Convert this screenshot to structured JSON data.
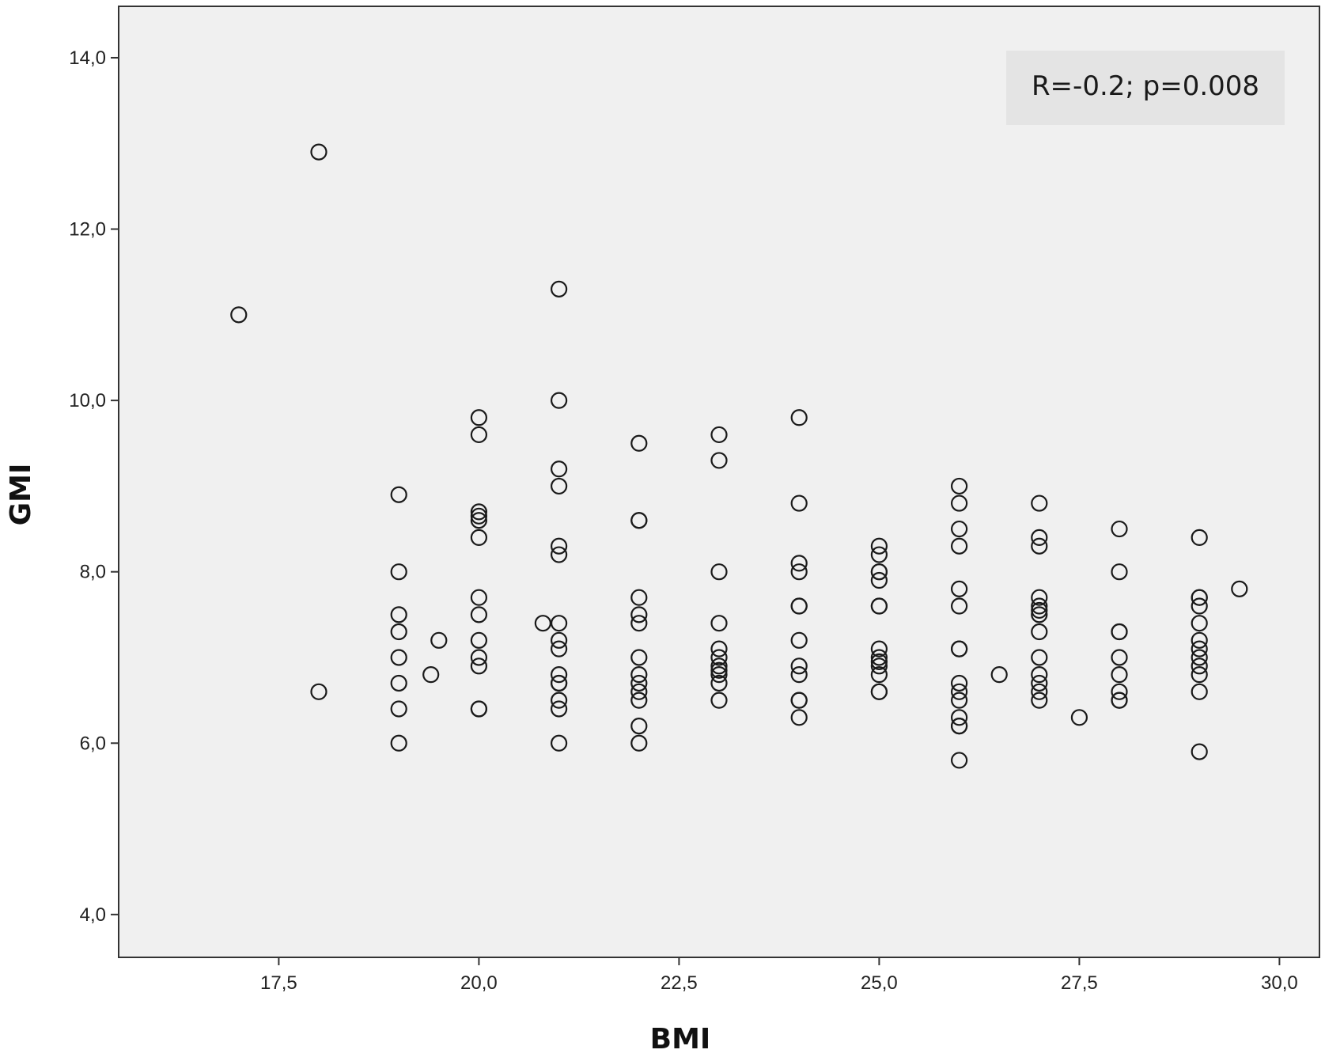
{
  "chart_data": {
    "type": "scatter",
    "xlabel": "BMI",
    "ylabel": "GMI",
    "xlim": [
      15.5,
      30.5
    ],
    "ylim": [
      3.5,
      14.6
    ],
    "x_ticks": [
      17.5,
      20.0,
      22.5,
      25.0,
      27.5,
      30.0
    ],
    "x_tick_labels": [
      "17,5",
      "20,0",
      "22,5",
      "25,0",
      "27,5",
      "30,0"
    ],
    "y_ticks": [
      4.0,
      6.0,
      8.0,
      10.0,
      12.0,
      14.0
    ],
    "y_tick_labels": [
      "4,0",
      "6,0",
      "8,0",
      "10,0",
      "12,0",
      "14,0"
    ],
    "grid": false,
    "annotation": {
      "text": "R=-0.2; p=0.008",
      "placement": "top-right"
    },
    "colors": {
      "plot_background": "#f0f0f0",
      "annotation_background": "#e4e4e4",
      "marker_stroke": "#1a1a1a",
      "axis": "#333333"
    },
    "series": [
      {
        "points": [
          [
            17.0,
            11.0
          ],
          [
            18.0,
            12.9
          ],
          [
            18.0,
            6.6
          ],
          [
            19.0,
            8.9
          ],
          [
            19.0,
            8.0
          ],
          [
            19.0,
            7.5
          ],
          [
            19.0,
            7.3
          ],
          [
            19.0,
            7.0
          ],
          [
            19.0,
            6.7
          ],
          [
            19.0,
            6.4
          ],
          [
            19.0,
            6.0
          ],
          [
            19.4,
            6.8
          ],
          [
            19.5,
            7.2
          ],
          [
            20.0,
            9.8
          ],
          [
            20.0,
            9.6
          ],
          [
            20.0,
            8.7
          ],
          [
            20.0,
            8.65
          ],
          [
            20.0,
            8.6
          ],
          [
            20.0,
            8.4
          ],
          [
            20.0,
            7.7
          ],
          [
            20.0,
            7.5
          ],
          [
            20.0,
            7.2
          ],
          [
            20.0,
            7.0
          ],
          [
            20.0,
            6.9
          ],
          [
            20.0,
            6.4
          ],
          [
            20.0,
            6.4
          ],
          [
            20.8,
            7.4
          ],
          [
            21.0,
            11.3
          ],
          [
            21.0,
            10.0
          ],
          [
            21.0,
            9.2
          ],
          [
            21.0,
            9.0
          ],
          [
            21.0,
            8.3
          ],
          [
            21.0,
            8.2
          ],
          [
            21.0,
            7.4
          ],
          [
            21.0,
            7.2
          ],
          [
            21.0,
            7.1
          ],
          [
            21.0,
            6.8
          ],
          [
            21.0,
            6.7
          ],
          [
            21.0,
            6.7
          ],
          [
            21.0,
            6.5
          ],
          [
            21.0,
            6.4
          ],
          [
            21.0,
            6.0
          ],
          [
            22.0,
            9.5
          ],
          [
            22.0,
            8.6
          ],
          [
            22.0,
            8.6
          ],
          [
            22.0,
            7.7
          ],
          [
            22.0,
            7.5
          ],
          [
            22.0,
            7.4
          ],
          [
            22.0,
            7.0
          ],
          [
            22.0,
            6.8
          ],
          [
            22.0,
            6.7
          ],
          [
            22.0,
            6.6
          ],
          [
            22.0,
            6.5
          ],
          [
            22.0,
            6.2
          ],
          [
            22.0,
            6.0
          ],
          [
            23.0,
            9.6
          ],
          [
            23.0,
            9.3
          ],
          [
            23.0,
            8.0
          ],
          [
            23.0,
            7.4
          ],
          [
            23.0,
            7.1
          ],
          [
            23.0,
            7.0
          ],
          [
            23.0,
            6.9
          ],
          [
            23.0,
            6.85
          ],
          [
            23.0,
            6.8
          ],
          [
            23.0,
            6.7
          ],
          [
            23.0,
            6.5
          ],
          [
            24.0,
            9.8
          ],
          [
            24.0,
            8.8
          ],
          [
            24.0,
            8.1
          ],
          [
            24.0,
            8.0
          ],
          [
            24.0,
            7.6
          ],
          [
            24.0,
            7.6
          ],
          [
            24.0,
            7.2
          ],
          [
            24.0,
            6.9
          ],
          [
            24.0,
            6.8
          ],
          [
            24.0,
            6.5
          ],
          [
            24.0,
            6.5
          ],
          [
            24.0,
            6.3
          ],
          [
            25.0,
            8.3
          ],
          [
            25.0,
            8.2
          ],
          [
            25.0,
            8.0
          ],
          [
            25.0,
            8.0
          ],
          [
            25.0,
            7.9
          ],
          [
            25.0,
            7.6
          ],
          [
            25.0,
            7.6
          ],
          [
            25.0,
            7.1
          ],
          [
            25.0,
            7.0
          ],
          [
            25.0,
            6.95
          ],
          [
            25.0,
            6.9
          ],
          [
            25.0,
            6.8
          ],
          [
            25.0,
            6.6
          ],
          [
            25.0,
            6.6
          ],
          [
            26.0,
            9.0
          ],
          [
            26.0,
            8.8
          ],
          [
            26.0,
            8.5
          ],
          [
            26.0,
            8.3
          ],
          [
            26.0,
            7.8
          ],
          [
            26.0,
            7.6
          ],
          [
            26.0,
            7.1
          ],
          [
            26.0,
            7.1
          ],
          [
            26.0,
            6.7
          ],
          [
            26.0,
            6.6
          ],
          [
            26.0,
            6.5
          ],
          [
            26.0,
            6.3
          ],
          [
            26.0,
            6.2
          ],
          [
            26.0,
            6.2
          ],
          [
            26.0,
            5.8
          ],
          [
            26.5,
            6.8
          ],
          [
            27.0,
            8.8
          ],
          [
            27.0,
            8.4
          ],
          [
            27.0,
            8.3
          ],
          [
            27.0,
            7.7
          ],
          [
            27.0,
            7.6
          ],
          [
            27.0,
            7.55
          ],
          [
            27.0,
            7.5
          ],
          [
            27.0,
            7.3
          ],
          [
            27.0,
            7.0
          ],
          [
            27.0,
            6.8
          ],
          [
            27.0,
            6.7
          ],
          [
            27.0,
            6.6
          ],
          [
            27.0,
            6.5
          ],
          [
            27.5,
            6.3
          ],
          [
            28.0,
            8.5
          ],
          [
            28.0,
            8.0
          ],
          [
            28.0,
            7.3
          ],
          [
            28.0,
            7.3
          ],
          [
            28.0,
            7.0
          ],
          [
            28.0,
            6.8
          ],
          [
            28.0,
            6.6
          ],
          [
            28.0,
            6.5
          ],
          [
            28.0,
            6.5
          ],
          [
            29.0,
            8.4
          ],
          [
            29.0,
            7.7
          ],
          [
            29.0,
            7.7
          ],
          [
            29.0,
            7.6
          ],
          [
            29.0,
            7.4
          ],
          [
            29.0,
            7.2
          ],
          [
            29.0,
            7.1
          ],
          [
            29.0,
            7.0
          ],
          [
            29.0,
            6.9
          ],
          [
            29.0,
            6.8
          ],
          [
            29.0,
            6.6
          ],
          [
            29.0,
            5.9
          ],
          [
            29.5,
            7.8
          ]
        ]
      }
    ]
  }
}
